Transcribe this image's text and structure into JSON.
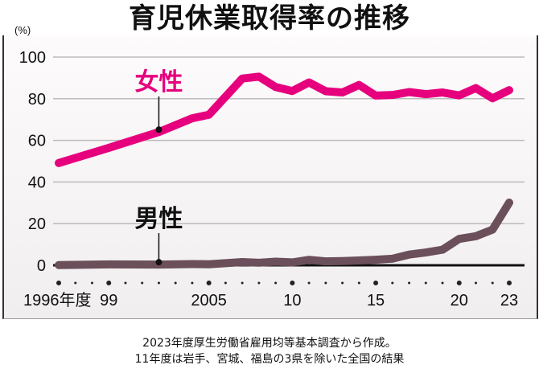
{
  "chart_data": {
    "type": "line",
    "title": "育児休業取得率の推移",
    "yunit": "(%)",
    "ylim": [
      0,
      100
    ],
    "yticks": [
      0,
      20,
      40,
      60,
      80,
      100
    ],
    "grid": true,
    "x": [
      1996,
      1999,
      2002,
      2004,
      2005,
      2007,
      2008,
      2009,
      2010,
      2011,
      2012,
      2013,
      2014,
      2015,
      2016,
      2017,
      2018,
      2019,
      2020,
      2021,
      2022,
      2023
    ],
    "xtick_labels": [
      {
        "year": 1996,
        "label": "1996年度"
      },
      {
        "year": 1999,
        "label": "99"
      },
      {
        "year": 2005,
        "label": "2005"
      },
      {
        "year": 2010,
        "label": "10"
      },
      {
        "year": 2015,
        "label": "15"
      },
      {
        "year": 2020,
        "label": "20"
      },
      {
        "year": 2023,
        "label": "23"
      }
    ],
    "series": [
      {
        "name": "女性",
        "color": "#e6007e",
        "values": [
          49.1,
          56.4,
          64.0,
          70.6,
          72.3,
          89.7,
          90.6,
          85.6,
          83.7,
          87.8,
          83.6,
          83.0,
          86.6,
          81.5,
          81.8,
          83.2,
          82.2,
          83.0,
          81.6,
          85.1,
          80.2,
          84.1
        ],
        "label_year": 2002
      },
      {
        "name": "男性",
        "color": "#6b4f5a",
        "values": [
          0.12,
          0.42,
          0.33,
          0.56,
          0.5,
          1.56,
          1.23,
          1.72,
          1.38,
          2.63,
          1.89,
          2.03,
          2.3,
          2.65,
          3.16,
          5.14,
          6.16,
          7.48,
          12.65,
          13.97,
          17.13,
          30.1
        ],
        "label_year": 2002
      }
    ]
  },
  "notes": [
    "2023年度厚生労働省雇用均等基本調査から作成。",
    "11年度は岩手、宮城、福島の3県を除いた全国の結果"
  ]
}
